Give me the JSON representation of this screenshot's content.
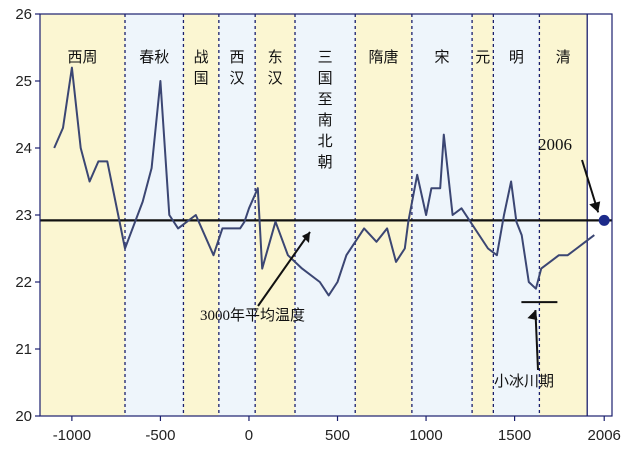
{
  "chart_data": {
    "type": "line",
    "title": "",
    "xlabel": "",
    "ylabel": "",
    "xlim": [
      -1180,
      2050
    ],
    "ylim": [
      20,
      26
    ],
    "x_ticks": [
      -1000,
      -500,
      0,
      500,
      1000,
      1500,
      2006
    ],
    "x_tick_labels": [
      "-1000",
      "-500",
      "0",
      "500",
      "1000",
      "1500",
      "2006"
    ],
    "y_ticks": [
      20,
      21,
      22,
      23,
      24,
      25,
      26
    ],
    "y_tick_labels": [
      "20",
      "21",
      "22",
      "23",
      "24",
      "25",
      "26"
    ],
    "reference_line": {
      "y": 22.92,
      "label": "3000年平均温度"
    },
    "dynasties": [
      {
        "name": "西周",
        "start": -1180,
        "end": -700,
        "color": "#fbf6d2",
        "chars": [
          "西周"
        ]
      },
      {
        "name": "春秋",
        "start": -700,
        "end": -370,
        "color": "#eef5fb",
        "chars": [
          "春秋"
        ]
      },
      {
        "name": "战国",
        "start": -370,
        "end": -170,
        "color": "#fbf6d2",
        "chars": [
          "战",
          "国"
        ]
      },
      {
        "name": "西汉",
        "start": -170,
        "end": 35,
        "color": "#eef5fb",
        "chars": [
          "西",
          "汉"
        ]
      },
      {
        "name": "东汉",
        "start": 35,
        "end": 260,
        "color": "#fbf6d2",
        "chars": [
          "东",
          "汉"
        ]
      },
      {
        "name": "三国至南北朝",
        "start": 260,
        "end": 600,
        "color": "#eef5fb",
        "chars": [
          "三",
          "国",
          "至",
          "南",
          "北",
          "朝"
        ]
      },
      {
        "name": "隋唐",
        "start": 600,
        "end": 920,
        "color": "#fbf6d2",
        "chars": [
          "隋唐"
        ]
      },
      {
        "name": "宋",
        "start": 920,
        "end": 1260,
        "color": "#eef5fb",
        "chars": [
          "宋"
        ]
      },
      {
        "name": "元",
        "start": 1260,
        "end": 1380,
        "color": "#fbf6d2",
        "chars": [
          "元"
        ]
      },
      {
        "name": "明",
        "start": 1380,
        "end": 1640,
        "color": "#eef5fb",
        "chars": [
          "明"
        ]
      },
      {
        "name": "清",
        "start": 1640,
        "end": 1910,
        "color": "#fbf6d2",
        "chars": [
          "清"
        ]
      }
    ],
    "series": [
      {
        "values_x": [
          -1100,
          -1050,
          -1000,
          -950,
          -900,
          -850,
          -800,
          -700,
          -600,
          -550,
          -500,
          -450,
          -400,
          -300,
          -200,
          -150,
          -50,
          -25,
          0,
          50,
          75,
          150,
          220,
          300,
          400,
          450,
          500,
          550,
          650,
          720,
          780,
          830,
          880,
          900,
          950,
          1000,
          1030,
          1080,
          1100,
          1150,
          1200,
          1350,
          1400,
          1440,
          1480,
          1510,
          1540,
          1580,
          1620,
          1650,
          1700,
          1750,
          1800,
          1850,
          1900,
          1950
        ],
        "values_y": [
          24.0,
          24.3,
          25.2,
          24.0,
          23.5,
          23.8,
          23.8,
          22.5,
          23.2,
          23.7,
          25.0,
          23.0,
          22.8,
          23.0,
          22.4,
          22.8,
          22.8,
          22.9,
          23.1,
          23.4,
          22.2,
          22.9,
          22.4,
          22.2,
          22.0,
          21.8,
          22.0,
          22.4,
          22.8,
          22.6,
          22.8,
          22.3,
          22.5,
          22.9,
          23.6,
          23.0,
          23.4,
          23.4,
          24.2,
          23.0,
          23.1,
          22.5,
          22.4,
          23.0,
          23.5,
          22.9,
          22.7,
          22.0,
          21.9,
          22.2,
          22.3,
          22.4,
          22.4,
          22.5,
          22.6,
          22.7
        ]
      }
    ],
    "current_point": {
      "x": 2006,
      "y": 22.92,
      "label": "2006"
    },
    "little_ice_age": {
      "x": 1640,
      "y": 21.7,
      "label": "小冰川期"
    }
  }
}
